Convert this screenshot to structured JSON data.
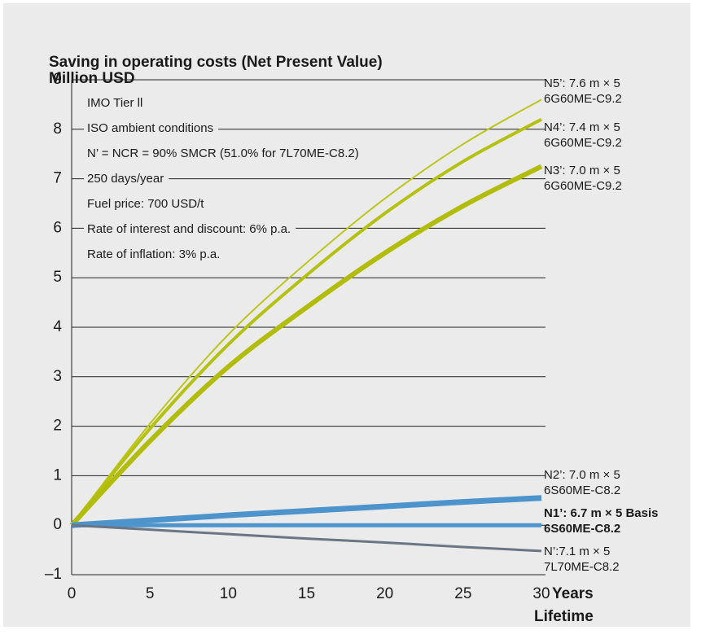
{
  "chart_data": {
    "type": "line",
    "title": [
      "Saving in operating costs (Net Present Value)",
      "Million USD"
    ],
    "xlabel": [
      "Years",
      "Lifetime"
    ],
    "annotations": [
      "IMO Tier ll",
      "ISO ambient conditions",
      "N’ = NCR = 90% SMCR (51.0% for 7L70ME-C8.2)",
      "250 days/year",
      "Fuel price: 700 USD/t",
      "Rate of interest and discount: 6% p.a.",
      "Rate of inflation: 3% p.a."
    ],
    "x": [
      0,
      5,
      10,
      15,
      20,
      25,
      30
    ],
    "xlim": [
      0,
      30
    ],
    "xticks": [
      0,
      5,
      10,
      15,
      20,
      25,
      30
    ],
    "ylim": [
      -1,
      9
    ],
    "yticks": [
      {
        "value": -1,
        "label": "–1"
      },
      0,
      1,
      2,
      3,
      4,
      5,
      6,
      7,
      8,
      9
    ],
    "grid": true,
    "series": [
      {
        "name": "N5’: 7.6 m × 5",
        "engine": "6G60ME-C9.2",
        "color": "#bcc61c",
        "width": 2,
        "values": [
          0,
          2.05,
          3.85,
          5.3,
          6.6,
          7.7,
          8.6
        ]
      },
      {
        "name": "N4’: 7.4 m × 5",
        "engine": "6G60ME-C9.2",
        "color": "#b5c10f",
        "width": 4,
        "values": [
          0,
          1.95,
          3.65,
          5.05,
          6.3,
          7.35,
          8.2
        ]
      },
      {
        "name": "N3’: 7.0 m × 5",
        "engine": "6G60ME-C9.2",
        "color": "#b1bd0a",
        "width": 6,
        "values": [
          0,
          1.7,
          3.2,
          4.4,
          5.5,
          6.45,
          7.25
        ]
      },
      {
        "name": "N2’: 7.0 m × 5",
        "engine": "6S60ME-C8.2",
        "color": "#4d93cc",
        "width": 7,
        "values": [
          0,
          0.1,
          0.2,
          0.29,
          0.38,
          0.47,
          0.55
        ]
      },
      {
        "name": "N1’: 6.7 m × 5 Basis",
        "engine": "6S60ME-C8.2",
        "color": "#4d93cc",
        "width": 5,
        "bold": true,
        "values": [
          0,
          0,
          0,
          0,
          0,
          0,
          0
        ]
      },
      {
        "name": "N’:7.1 m × 5",
        "engine": "7L70ME-C8.2",
        "color": "#6b7583",
        "width": 3,
        "values": [
          0,
          -0.09,
          -0.18,
          -0.27,
          -0.35,
          -0.44,
          -0.52
        ]
      }
    ]
  }
}
